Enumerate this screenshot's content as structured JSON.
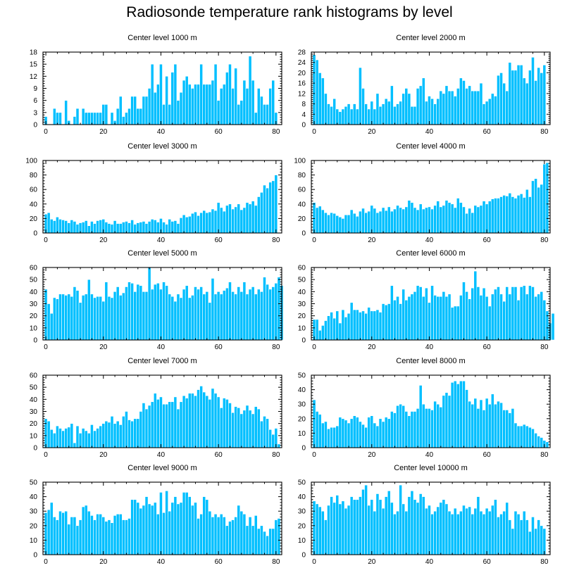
{
  "title": "Radiosonde temperature rank histograms by level",
  "bar_color": "#00bfff",
  "bar_edge_color": "#ffffff",
  "chart_data": [
    {
      "type": "bar",
      "title": "Center level 1000 m",
      "xlabel": "",
      "ylabel": "",
      "xlim": [
        -1,
        82
      ],
      "ylim": [
        0,
        18
      ],
      "x_ticks": [
        0,
        20,
        40,
        60,
        80
      ],
      "y_ticks": [
        0,
        3,
        6,
        9,
        12,
        15,
        18
      ],
      "values": [
        2,
        0,
        0,
        4,
        3,
        3,
        0,
        6,
        1,
        0,
        2,
        4,
        0,
        4,
        3,
        3,
        3,
        3,
        3,
        3,
        5,
        5,
        0,
        3,
        1,
        4,
        7,
        2,
        3,
        4,
        7,
        7,
        4,
        4,
        7,
        7,
        9,
        15,
        8,
        10,
        15,
        5,
        12,
        5,
        13,
        15,
        6,
        8,
        11,
        12,
        10,
        9,
        10,
        10,
        15,
        10,
        10,
        10,
        11,
        15,
        6,
        9,
        10,
        13,
        15,
        9,
        14,
        5,
        6,
        11,
        9,
        17,
        11,
        3,
        9,
        7,
        5,
        5,
        9,
        11,
        3
      ]
    },
    {
      "type": "bar",
      "title": "Center level 2000 m",
      "xlabel": "",
      "ylabel": "",
      "xlim": [
        -1,
        82
      ],
      "ylim": [
        0,
        28
      ],
      "x_ticks": [
        0,
        20,
        40,
        60,
        80
      ],
      "y_ticks": [
        0,
        4,
        8,
        12,
        16,
        20,
        24,
        28
      ],
      "values": [
        27,
        25,
        20,
        18,
        12,
        8,
        7,
        10,
        6,
        5,
        6,
        7,
        8,
        6,
        8,
        6,
        22,
        14,
        8,
        6,
        9,
        6,
        12,
        7,
        8,
        10,
        9,
        15,
        7,
        8,
        9,
        12,
        14,
        12,
        7,
        7,
        14,
        15,
        18,
        9,
        11,
        10,
        8,
        10,
        13,
        12,
        15,
        13,
        13,
        11,
        14,
        18,
        17,
        14,
        15,
        13,
        13,
        13,
        16,
        8,
        9,
        10,
        12,
        11,
        19,
        20,
        16,
        13,
        24,
        21,
        21,
        23,
        23,
        18,
        16,
        21,
        26,
        17,
        22,
        20,
        23
      ]
    },
    {
      "type": "bar",
      "title": "Center level 3000 m",
      "xlabel": "",
      "ylabel": "",
      "xlim": [
        -1,
        82
      ],
      "ylim": [
        0,
        100
      ],
      "x_ticks": [
        0,
        20,
        40,
        60,
        80
      ],
      "y_ticks": [
        0,
        20,
        40,
        60,
        80,
        100
      ],
      "values": [
        26,
        28,
        19,
        17,
        22,
        19,
        18,
        17,
        14,
        18,
        16,
        12,
        14,
        15,
        17,
        10,
        16,
        13,
        17,
        18,
        19,
        15,
        13,
        12,
        17,
        13,
        13,
        15,
        16,
        14,
        18,
        12,
        14,
        15,
        16,
        13,
        16,
        19,
        18,
        15,
        20,
        15,
        12,
        19,
        16,
        17,
        13,
        21,
        25,
        22,
        23,
        27,
        29,
        24,
        28,
        31,
        28,
        29,
        33,
        31,
        42,
        35,
        30,
        38,
        40,
        33,
        36,
        40,
        32,
        35,
        42,
        40,
        44,
        38,
        50,
        56,
        66,
        62,
        70,
        72,
        80
      ]
    },
    {
      "type": "bar",
      "title": "Center level 4000 m",
      "xlabel": "",
      "ylabel": "",
      "xlim": [
        -1,
        82
      ],
      "ylim": [
        0,
        100
      ],
      "x_ticks": [
        0,
        20,
        40,
        60,
        80
      ],
      "y_ticks": [
        0,
        20,
        40,
        60,
        80,
        100
      ],
      "values": [
        42,
        35,
        37,
        32,
        28,
        25,
        28,
        27,
        24,
        22,
        20,
        25,
        25,
        32,
        27,
        23,
        30,
        34,
        28,
        30,
        38,
        34,
        28,
        30,
        35,
        31,
        36,
        30,
        33,
        38,
        35,
        33,
        36,
        45,
        42,
        35,
        32,
        40,
        33,
        35,
        36,
        33,
        38,
        44,
        36,
        38,
        45,
        42,
        40,
        35,
        48,
        42,
        36,
        27,
        34,
        28,
        38,
        36,
        38,
        44,
        40,
        44,
        47,
        48,
        48,
        50,
        52,
        51,
        55,
        50,
        48,
        52,
        54,
        49,
        60,
        50,
        72,
        75,
        63,
        67,
        95,
        97
      ]
    },
    {
      "type": "bar",
      "title": "Center level 5000 m",
      "xlabel": "",
      "ylabel": "",
      "xlim": [
        -1,
        82
      ],
      "ylim": [
        0,
        60
      ],
      "x_ticks": [
        0,
        20,
        40,
        60,
        80
      ],
      "y_ticks": [
        0,
        10,
        20,
        30,
        40,
        50,
        60
      ],
      "values": [
        42,
        30,
        22,
        35,
        34,
        38,
        38,
        37,
        38,
        36,
        44,
        41,
        31,
        37,
        38,
        50,
        38,
        35,
        36,
        36,
        32,
        48,
        36,
        35,
        40,
        44,
        37,
        39,
        44,
        48,
        47,
        40,
        46,
        45,
        40,
        40,
        60,
        42,
        46,
        47,
        42,
        48,
        45,
        38,
        36,
        32,
        38,
        35,
        42,
        45,
        35,
        37,
        44,
        42,
        44,
        38,
        40,
        31,
        51,
        38,
        40,
        38,
        41,
        43,
        48,
        40,
        38,
        44,
        40,
        48,
        38,
        42,
        44,
        38,
        42,
        40,
        52,
        46,
        42,
        44,
        47,
        52,
        45
      ]
    },
    {
      "type": "bar",
      "title": "Center level 6000 m",
      "xlabel": "",
      "ylabel": "",
      "xlim": [
        -1,
        82
      ],
      "ylim": [
        0,
        60
      ],
      "x_ticks": [
        0,
        20,
        40,
        60,
        80
      ],
      "y_ticks": [
        0,
        10,
        20,
        30,
        40,
        50,
        60
      ],
      "values": [
        17,
        17,
        8,
        12,
        16,
        20,
        23,
        18,
        24,
        14,
        25,
        19,
        22,
        31,
        25,
        25,
        23,
        24,
        22,
        27,
        24,
        24,
        25,
        23,
        30,
        29,
        30,
        45,
        33,
        36,
        30,
        42,
        33,
        36,
        38,
        40,
        45,
        44,
        36,
        43,
        31,
        45,
        37,
        36,
        36,
        40,
        36,
        38,
        27,
        28,
        28,
        37,
        48,
        40,
        34,
        43,
        57,
        44,
        37,
        43,
        36,
        28,
        38,
        42,
        44,
        38,
        32,
        44,
        38,
        44,
        44,
        33,
        44,
        45,
        38,
        45,
        44,
        36,
        38,
        40,
        33,
        24,
        14,
        22
      ]
    },
    {
      "type": "bar",
      "title": "Center level 7000 m",
      "xlabel": "",
      "ylabel": "",
      "xlim": [
        -1,
        82
      ],
      "ylim": [
        0,
        60
      ],
      "x_ticks": [
        0,
        20,
        40,
        60,
        80
      ],
      "y_ticks": [
        0,
        10,
        20,
        30,
        40,
        50,
        60
      ],
      "values": [
        24,
        22,
        15,
        12,
        18,
        16,
        14,
        16,
        17,
        20,
        4,
        18,
        12,
        16,
        14,
        12,
        19,
        14,
        16,
        18,
        20,
        22,
        21,
        26,
        20,
        22,
        19,
        26,
        30,
        23,
        22,
        24,
        24,
        30,
        37,
        32,
        35,
        38,
        45,
        40,
        42,
        36,
        36,
        38,
        38,
        42,
        32,
        38,
        43,
        41,
        45,
        45,
        43,
        48,
        51,
        46,
        43,
        40,
        49,
        45,
        42,
        33,
        41,
        40,
        37,
        29,
        34,
        33,
        28,
        31,
        35,
        31,
        28,
        34,
        32,
        22,
        26,
        24,
        15,
        11,
        16,
        3
      ]
    },
    {
      "type": "bar",
      "title": "Center level 8000 m",
      "xlabel": "",
      "ylabel": "",
      "xlim": [
        -1,
        82
      ],
      "ylim": [
        0,
        50
      ],
      "x_ticks": [
        0,
        20,
        40,
        60,
        80
      ],
      "y_ticks": [
        0,
        10,
        20,
        30,
        40,
        50
      ],
      "values": [
        33,
        25,
        23,
        17,
        18,
        13,
        14,
        14,
        15,
        21,
        20,
        19,
        17,
        20,
        22,
        21,
        18,
        16,
        14,
        21,
        22,
        17,
        15,
        20,
        18,
        21,
        20,
        25,
        24,
        29,
        30,
        29,
        25,
        22,
        25,
        25,
        27,
        43,
        30,
        27,
        27,
        26,
        32,
        30,
        28,
        36,
        38,
        36,
        45,
        46,
        44,
        46,
        46,
        40,
        32,
        30,
        34,
        27,
        33,
        26,
        34,
        30,
        37,
        30,
        32,
        31,
        26,
        26,
        24,
        27,
        17,
        15,
        15,
        16,
        15,
        14,
        13,
        10,
        8,
        7,
        5,
        4
      ]
    },
    {
      "type": "bar",
      "title": "Center level 9000 m",
      "xlabel": "",
      "ylabel": "",
      "xlim": [
        -1,
        82
      ],
      "ylim": [
        0,
        50
      ],
      "x_ticks": [
        0,
        20,
        40,
        60,
        80
      ],
      "y_ticks": [
        0,
        10,
        20,
        30,
        40,
        50
      ],
      "values": [
        29,
        31,
        36,
        26,
        24,
        30,
        29,
        30,
        21,
        26,
        26,
        20,
        24,
        33,
        34,
        30,
        27,
        24,
        28,
        28,
        26,
        23,
        24,
        22,
        27,
        28,
        28,
        24,
        24,
        25,
        38,
        38,
        36,
        32,
        34,
        40,
        35,
        34,
        36,
        28,
        43,
        29,
        44,
        30,
        36,
        40,
        35,
        36,
        43,
        43,
        40,
        34,
        36,
        25,
        28,
        40,
        38,
        30,
        26,
        28,
        26,
        28,
        26,
        20,
        23,
        24,
        26,
        34,
        30,
        28,
        20,
        26,
        20,
        27,
        18,
        20,
        16,
        13,
        18,
        18,
        24,
        25
      ]
    },
    {
      "type": "bar",
      "title": "Center level 10000 m",
      "xlabel": "",
      "ylabel": "",
      "xlim": [
        -1,
        82
      ],
      "ylim": [
        0,
        50
      ],
      "x_ticks": [
        0,
        20,
        40,
        60,
        80
      ],
      "y_ticks": [
        0,
        10,
        20,
        30,
        40,
        50
      ],
      "values": [
        37,
        35,
        33,
        30,
        24,
        34,
        40,
        36,
        41,
        35,
        37,
        32,
        34,
        40,
        38,
        38,
        40,
        45,
        48,
        34,
        38,
        30,
        42,
        38,
        32,
        40,
        44,
        36,
        28,
        30,
        48,
        35,
        30,
        40,
        44,
        38,
        36,
        42,
        40,
        32,
        34,
        28,
        30,
        33,
        36,
        38,
        35,
        30,
        28,
        32,
        28,
        30,
        34,
        32,
        33,
        28,
        32,
        40,
        30,
        28,
        32,
        30,
        34,
        38,
        26,
        28,
        30,
        36,
        24,
        18,
        30,
        28,
        24,
        30,
        24,
        16,
        26,
        18,
        24,
        20,
        18
      ]
    }
  ]
}
